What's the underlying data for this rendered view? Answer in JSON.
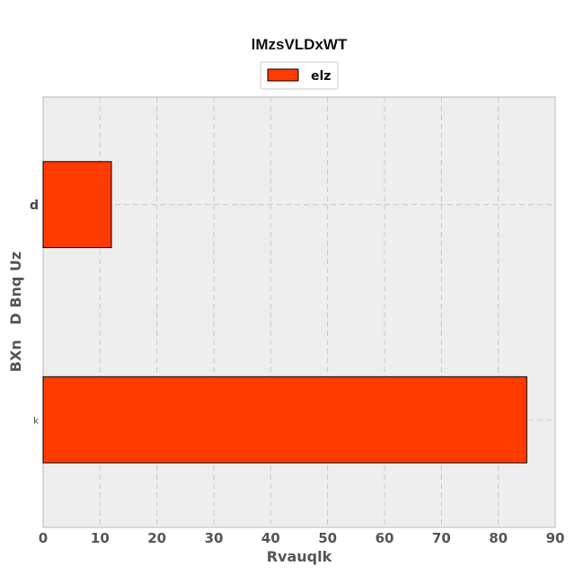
{
  "chart_data": {
    "type": "bar",
    "orientation": "horizontal",
    "title": "lMzsVLDxWT",
    "xlabel": "Rvauqlk",
    "ylabel": "BXn   D Bnq Uz",
    "categories": [
      "d",
      "k"
    ],
    "series": [
      {
        "name": "elz",
        "values": [
          12,
          85
        ]
      }
    ],
    "xlim": [
      0,
      90
    ],
    "xticks": [
      0,
      10,
      20,
      30,
      40,
      50,
      60,
      70,
      80,
      90
    ],
    "grid": true,
    "legend": "top-center",
    "colors": {
      "bar": "#ff3b00",
      "bar_edge": "#000000",
      "plot_background": "#eeeeee",
      "grid": "#c8c8c8"
    }
  }
}
